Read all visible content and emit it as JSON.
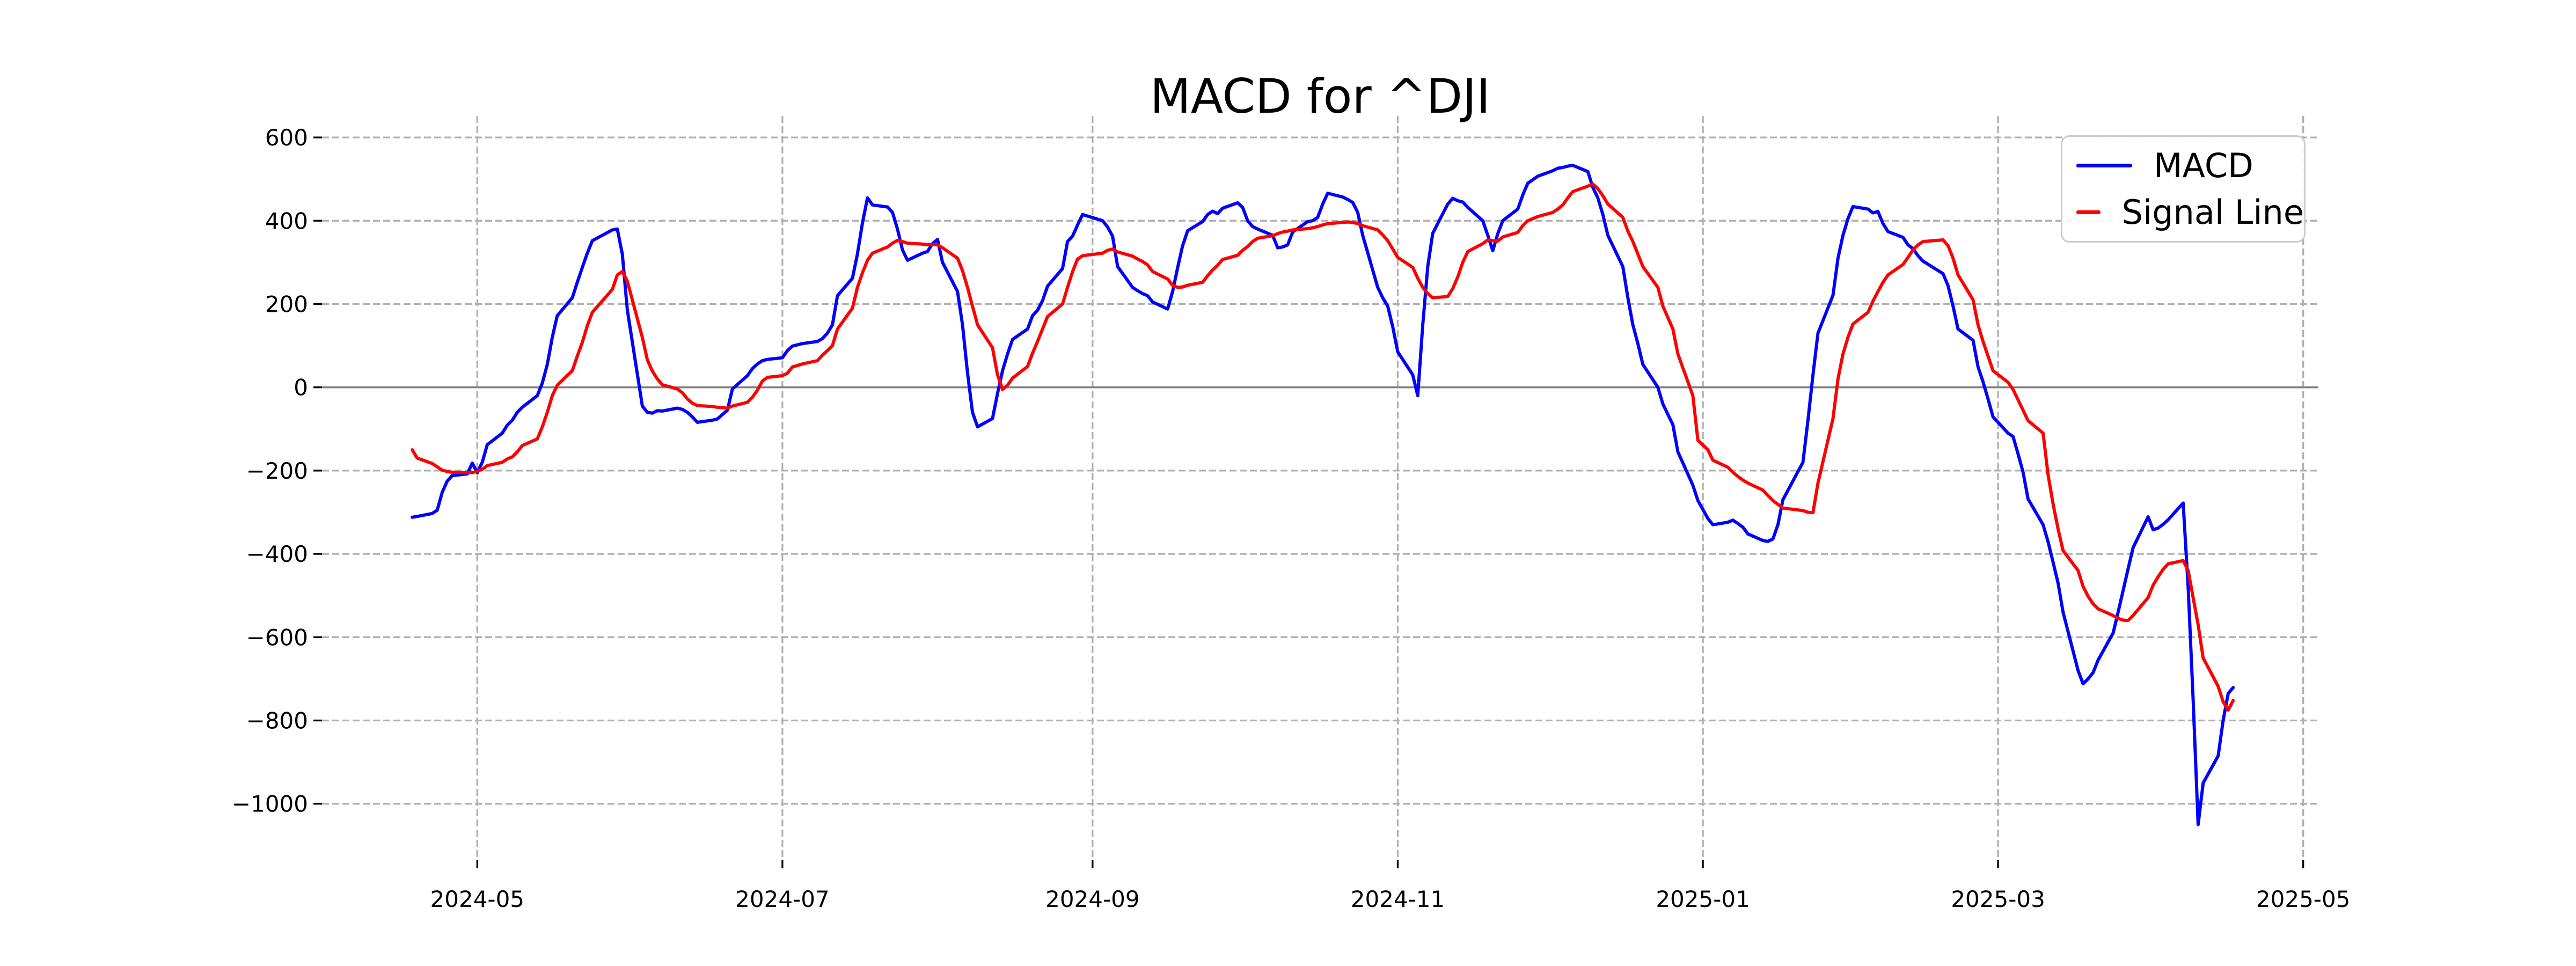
{
  "title": "MACD for ^DJI",
  "legend": {
    "items": [
      {
        "label": "MACD",
        "color": "#0000ff"
      },
      {
        "label": "Signal Line",
        "color": "#ff0000"
      }
    ]
  },
  "colors": {
    "macd": "#0000ff",
    "signal": "#ff0000",
    "grid": "#b0b0b0",
    "zero_line": "#808080",
    "tick": "#000000"
  },
  "chart_data": {
    "type": "line",
    "title": "MACD for ^DJI",
    "grid": "dashed",
    "legend_position": "upper right",
    "ylim": [
      -1134,
      652
    ],
    "y_tick_values": [
      600,
      400,
      200,
      0,
      -200,
      -400,
      -600,
      -800,
      -1000
    ],
    "y_tick_labels": [
      "600",
      "400",
      "200",
      "0",
      "−200",
      "−400",
      "−600",
      "−800",
      "−1000"
    ],
    "x_ticks": [
      {
        "label": "2024-05",
        "date": "2024-05-01"
      },
      {
        "label": "2024-07",
        "date": "2024-07-01"
      },
      {
        "label": "2024-09",
        "date": "2024-09-01"
      },
      {
        "label": "2024-11",
        "date": "2024-11-01"
      },
      {
        "label": "2025-01",
        "date": "2025-01-01"
      },
      {
        "label": "2025-03",
        "date": "2025-03-01"
      },
      {
        "label": "2025-05",
        "date": "2025-05-01"
      }
    ],
    "zero_line": 0,
    "dates": [
      "2024-04-18",
      "2024-04-19",
      "2024-04-22",
      "2024-04-23",
      "2024-04-24",
      "2024-04-25",
      "2024-04-26",
      "2024-04-29",
      "2024-04-30",
      "2024-05-01",
      "2024-05-02",
      "2024-05-03",
      "2024-05-06",
      "2024-05-07",
      "2024-05-08",
      "2024-05-09",
      "2024-05-10",
      "2024-05-13",
      "2024-05-14",
      "2024-05-15",
      "2024-05-16",
      "2024-05-17",
      "2024-05-20",
      "2024-05-21",
      "2024-05-22",
      "2024-05-23",
      "2024-05-24",
      "2024-05-28",
      "2024-05-29",
      "2024-05-30",
      "2024-05-31",
      "2024-06-03",
      "2024-06-04",
      "2024-06-05",
      "2024-06-06",
      "2024-06-07",
      "2024-06-10",
      "2024-06-11",
      "2024-06-12",
      "2024-06-13",
      "2024-06-14",
      "2024-06-17",
      "2024-06-18",
      "2024-06-20",
      "2024-06-21",
      "2024-06-24",
      "2024-06-25",
      "2024-06-26",
      "2024-06-27",
      "2024-06-28",
      "2024-07-01",
      "2024-07-02",
      "2024-07-03",
      "2024-07-05",
      "2024-07-08",
      "2024-07-09",
      "2024-07-10",
      "2024-07-11",
      "2024-07-12",
      "2024-07-15",
      "2024-07-16",
      "2024-07-17",
      "2024-07-18",
      "2024-07-19",
      "2024-07-22",
      "2024-07-23",
      "2024-07-24",
      "2024-07-25",
      "2024-07-26",
      "2024-07-29",
      "2024-07-30",
      "2024-07-31",
      "2024-08-01",
      "2024-08-02",
      "2024-08-05",
      "2024-08-06",
      "2024-08-07",
      "2024-08-08",
      "2024-08-09",
      "2024-08-12",
      "2024-08-13",
      "2024-08-14",
      "2024-08-15",
      "2024-08-16",
      "2024-08-19",
      "2024-08-20",
      "2024-08-21",
      "2024-08-22",
      "2024-08-23",
      "2024-08-26",
      "2024-08-27",
      "2024-08-28",
      "2024-08-29",
      "2024-08-30",
      "2024-09-03",
      "2024-09-04",
      "2024-09-05",
      "2024-09-06",
      "2024-09-09",
      "2024-09-10",
      "2024-09-11",
      "2024-09-12",
      "2024-09-13",
      "2024-09-16",
      "2024-09-17",
      "2024-09-18",
      "2024-09-19",
      "2024-09-20",
      "2024-09-23",
      "2024-09-24",
      "2024-09-25",
      "2024-09-26",
      "2024-09-27",
      "2024-09-30",
      "2024-10-01",
      "2024-10-02",
      "2024-10-03",
      "2024-10-04",
      "2024-10-07",
      "2024-10-08",
      "2024-10-09",
      "2024-10-10",
      "2024-10-11",
      "2024-10-14",
      "2024-10-15",
      "2024-10-16",
      "2024-10-17",
      "2024-10-18",
      "2024-10-21",
      "2024-10-22",
      "2024-10-23",
      "2024-10-24",
      "2024-10-25",
      "2024-10-28",
      "2024-10-29",
      "2024-10-30",
      "2024-10-31",
      "2024-11-01",
      "2024-11-04",
      "2024-11-05",
      "2024-11-06",
      "2024-11-07",
      "2024-11-08",
      "2024-11-11",
      "2024-11-12",
      "2024-11-13",
      "2024-11-14",
      "2024-11-15",
      "2024-11-18",
      "2024-11-19",
      "2024-11-20",
      "2024-11-21",
      "2024-11-22",
      "2024-11-25",
      "2024-11-26",
      "2024-11-27",
      "2024-11-29",
      "2024-12-02",
      "2024-12-03",
      "2024-12-04",
      "2024-12-05",
      "2024-12-06",
      "2024-12-09",
      "2024-12-10",
      "2024-12-11",
      "2024-12-12",
      "2024-12-13",
      "2024-12-16",
      "2024-12-17",
      "2024-12-18",
      "2024-12-19",
      "2024-12-20",
      "2024-12-23",
      "2024-12-24",
      "2024-12-26",
      "2024-12-27",
      "2024-12-30",
      "2024-12-31",
      "2025-01-02",
      "2025-01-03",
      "2025-01-06",
      "2025-01-07",
      "2025-01-08",
      "2025-01-09",
      "2025-01-10",
      "2025-01-13",
      "2025-01-14",
      "2025-01-15",
      "2025-01-16",
      "2025-01-17",
      "2025-01-21",
      "2025-01-22",
      "2025-01-23",
      "2025-01-24",
      "2025-01-27",
      "2025-01-28",
      "2025-01-29",
      "2025-01-30",
      "2025-01-31",
      "2025-02-03",
      "2025-02-04",
      "2025-02-05",
      "2025-02-06",
      "2025-02-07",
      "2025-02-10",
      "2025-02-11",
      "2025-02-12",
      "2025-02-13",
      "2025-02-14",
      "2025-02-18",
      "2025-02-19",
      "2025-02-20",
      "2025-02-21",
      "2025-02-24",
      "2025-02-25",
      "2025-02-26",
      "2025-02-27",
      "2025-02-28",
      "2025-03-03",
      "2025-03-04",
      "2025-03-05",
      "2025-03-06",
      "2025-03-07",
      "2025-03-10",
      "2025-03-11",
      "2025-03-12",
      "2025-03-13",
      "2025-03-14",
      "2025-03-17",
      "2025-03-18",
      "2025-03-19",
      "2025-03-20",
      "2025-03-21",
      "2025-03-24",
      "2025-03-25",
      "2025-03-26",
      "2025-03-27",
      "2025-03-28",
      "2025-03-31",
      "2025-04-01",
      "2025-04-02",
      "2025-04-03",
      "2025-04-04",
      "2025-04-07",
      "2025-04-08",
      "2025-04-09",
      "2025-04-10",
      "2025-04-11",
      "2025-04-14",
      "2025-04-15",
      "2025-04-16",
      "2025-04-17"
    ],
    "series": [
      {
        "name": "MACD",
        "color": "#0000ff",
        "values": [
          -312,
          -310,
          -303,
          -295,
          -252,
          -225,
          -212,
          -208,
          -182,
          -205,
          -180,
          -138,
          -110,
          -91,
          -79,
          -60,
          -48,
          -20,
          10,
          55,
          120,
          172,
          215,
          252,
          288,
          322,
          352,
          378,
          380,
          320,
          186,
          -45,
          -60,
          -62,
          -56,
          -57,
          -50,
          -53,
          -60,
          -71,
          -84,
          -79,
          -76,
          -55,
          -4,
          28,
          45,
          56,
          64,
          67,
          71,
          88,
          99,
          105,
          110,
          117,
          130,
          150,
          220,
          262,
          320,
          395,
          455,
          438,
          433,
          420,
          380,
          330,
          305,
          322,
          326,
          345,
          355,
          300,
          230,
          150,
          35,
          -60,
          -95,
          -75,
          -15,
          40,
          80,
          115,
          140,
          172,
          185,
          208,
          243,
          285,
          350,
          363,
          390,
          415,
          400,
          385,
          363,
          290,
          240,
          232,
          225,
          220,
          205,
          188,
          230,
          287,
          340,
          376,
          398,
          415,
          423,
          417,
          430,
          443,
          432,
          400,
          386,
          380,
          365,
          335,
          337,
          342,
          373,
          398,
          400,
          408,
          440,
          466,
          457,
          451,
          444,
          420,
          365,
          240,
          215,
          195,
          145,
          85,
          30,
          -20,
          150,
          290,
          370,
          440,
          454,
          448,
          445,
          432,
          400,
          365,
          328,
          369,
          400,
          428,
          462,
          490,
          507,
          520,
          526,
          528,
          531,
          533,
          518,
          480,
          455,
          415,
          365,
          290,
          215,
          150,
          105,
          55,
          0,
          -40,
          -90,
          -155,
          -235,
          -272,
          -315,
          -330,
          -324,
          -319,
          -327,
          -336,
          -352,
          -368,
          -370,
          -364,
          -330,
          -270,
          -180,
          -80,
          30,
          130,
          221,
          310,
          365,
          405,
          434,
          428,
          419,
          422,
          393,
          374,
          360,
          342,
          333,
          316,
          303,
          273,
          244,
          195,
          140,
          113,
          49,
          13,
          -28,
          -71,
          -110,
          -118,
          -160,
          -204,
          -268,
          -330,
          -371,
          -420,
          -470,
          -540,
          -680,
          -712,
          -700,
          -685,
          -655,
          -590,
          -540,
          -488,
          -436,
          -385,
          -311,
          -342,
          -338,
          -329,
          -318,
          -278,
          -480,
          -750,
          -1050,
          -950,
          -885,
          -800,
          -735,
          -721
        ]
      },
      {
        "name": "Signal Line",
        "color": "#ff0000",
        "values": [
          -150,
          -170,
          -183,
          -191,
          -199,
          -202,
          -204,
          -205,
          -205,
          -201,
          -197,
          -188,
          -180,
          -172,
          -167,
          -155,
          -140,
          -124,
          -95,
          -60,
          -20,
          5,
          40,
          75,
          108,
          148,
          180,
          235,
          270,
          278,
          255,
          120,
          66,
          39,
          20,
          6,
          -4,
          -13,
          -28,
          -38,
          -44,
          -46,
          -48,
          -50,
          -45,
          -36,
          -24,
          -7,
          15,
          24,
          28,
          34,
          49,
          56,
          64,
          77,
          88,
          100,
          140,
          190,
          240,
          275,
          305,
          322,
          337,
          346,
          353,
          350,
          346,
          344,
          342,
          343,
          342,
          335,
          310,
          280,
          240,
          195,
          150,
          95,
          30,
          -5,
          5,
          22,
          50,
          82,
          110,
          140,
          170,
          200,
          240,
          278,
          308,
          316,
          322,
          329,
          332,
          325,
          315,
          308,
          302,
          294,
          278,
          260,
          245,
          240,
          241,
          245,
          252,
          268,
          282,
          293,
          307,
          317,
          329,
          338,
          350,
          358,
          364,
          369,
          373,
          375,
          378,
          381,
          383,
          386,
          390,
          393,
          396,
          397,
          396,
          393,
          388,
          378,
          366,
          352,
          332,
          312,
          288,
          262,
          240,
          225,
          215,
          218,
          237,
          265,
          300,
          326,
          345,
          354,
          352,
          351,
          361,
          372,
          388,
          400,
          410,
          420,
          428,
          438,
          455,
          470,
          483,
          488,
          477,
          460,
          440,
          408,
          375,
          350,
          320,
          290,
          240,
          195,
          140,
          80,
          -20,
          -127,
          -150,
          -175,
          -192,
          -204,
          -214,
          -223,
          -230,
          -247,
          -260,
          -272,
          -281,
          -290,
          -296,
          -300,
          -301,
          -230,
          -75,
          20,
          80,
          120,
          152,
          180,
          207,
          230,
          252,
          270,
          295,
          312,
          330,
          342,
          350,
          354,
          340,
          310,
          270,
          210,
          150,
          110,
          75,
          40,
          12,
          -5,
          -30,
          -55,
          -80,
          -110,
          -210,
          -280,
          -340,
          -392,
          -440,
          -478,
          -502,
          -520,
          -532,
          -548,
          -555,
          -559,
          -560,
          -548,
          -505,
          -475,
          -455,
          -437,
          -424,
          -416,
          -440,
          -505,
          -570,
          -650,
          -718,
          -755,
          -775,
          -752
        ]
      }
    ]
  }
}
